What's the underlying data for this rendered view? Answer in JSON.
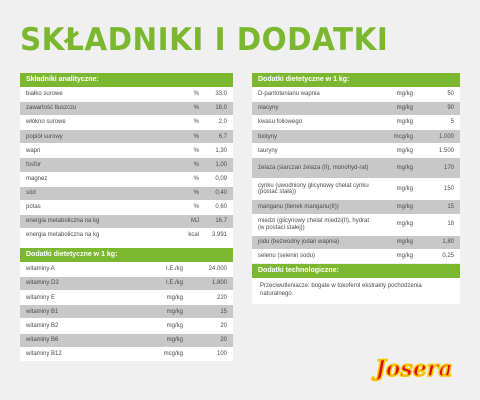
{
  "title": "SKŁADNIKI I DODATKI",
  "left": {
    "analytic": {
      "heading": "Składniki analityczne:",
      "rows": [
        {
          "name": "białko surowe",
          "unit": "%",
          "value": "33,0"
        },
        {
          "name": "zawartość tłuszczu",
          "unit": "%",
          "value": "18,0"
        },
        {
          "name": "włókno surowe",
          "unit": "%",
          "value": "2,0"
        },
        {
          "name": "popiół surowy",
          "unit": "%",
          "value": "6,7"
        },
        {
          "name": "wapń",
          "unit": "%",
          "value": "1,30"
        },
        {
          "name": "fosfor",
          "unit": "%",
          "value": "1,00"
        },
        {
          "name": "magnez",
          "unit": "%",
          "value": "0,09"
        },
        {
          "name": "sód",
          "unit": "%",
          "value": "0,40"
        },
        {
          "name": "potas",
          "unit": "%",
          "value": "0,60"
        },
        {
          "name": "energia metaboliczna na kg",
          "unit": "MJ",
          "value": "16,7"
        },
        {
          "name": "energia metaboliczna na kg",
          "unit": "kcal",
          "value": "3.991"
        }
      ]
    },
    "dietary": {
      "heading": "Dodatki dietetyczne w 1 kg:",
      "rows": [
        {
          "name": "witaminy A",
          "unit": "I.E./kg",
          "value": "24.000"
        },
        {
          "name": "witaminy D3",
          "unit": "I.E./kg",
          "value": "1.800"
        },
        {
          "name": "witaminy E",
          "unit": "mg/kg",
          "value": "220"
        },
        {
          "name": "witaminy B1",
          "unit": "mg/kg",
          "value": "15"
        },
        {
          "name": "witaminy B2",
          "unit": "mg/kg",
          "value": "20"
        },
        {
          "name": "witaminy B6",
          "unit": "mg/kg",
          "value": "20"
        },
        {
          "name": "witaminy B12",
          "unit": "mcg/kg",
          "value": "100"
        }
      ]
    }
  },
  "right": {
    "dietary": {
      "heading": "Dodatki dietetyczne w 1 kg:",
      "rows": [
        {
          "name": "D-pantotenianu wapnia",
          "unit": "mg/kg",
          "value": "50",
          "tall": false
        },
        {
          "name": "niacyny",
          "unit": "mg/kg",
          "value": "90",
          "tall": false
        },
        {
          "name": "kwasu foliowego",
          "unit": "mg/kg",
          "value": "5",
          "tall": false
        },
        {
          "name": "biotyny",
          "unit": "mcg/kg",
          "value": "1.000",
          "tall": false
        },
        {
          "name": "tauryny",
          "unit": "mg/kg",
          "value": "1.500",
          "tall": false
        },
        {
          "name": "żelaza (siarczan żelaza (II), monohyd-rat)",
          "unit": "mg/kg",
          "value": "170",
          "tall": true
        },
        {
          "name": "cynku (uwodniony glicynowy chelat cynku (postać stała))",
          "unit": "mg/kg",
          "value": "150",
          "tall": true
        },
        {
          "name": "manganu (tlenek manganu(II))",
          "unit": "mg/kg",
          "value": "15",
          "tall": false
        },
        {
          "name": "miedzi (glicynowy chelat miedzi(II), hydrat (w postaci stałej))",
          "unit": "mg/kg",
          "value": "18",
          "tall": true
        },
        {
          "name": "jodu (bezwodny jodan wapnia)",
          "unit": "mg/kg",
          "value": "1,80",
          "tall": false
        },
        {
          "name": "selenu (selenin sodu)",
          "unit": "mg/kg",
          "value": "0,25",
          "tall": false
        }
      ]
    },
    "technological": {
      "heading": "Dodatki technologiczne:",
      "text": "Przeciwutleniacze: bogate w tokoferol ekstrakty pochodzenia naturalnego."
    }
  },
  "logo": {
    "text": "Josera",
    "color": "#e30613",
    "outline": "#f7c600"
  },
  "colors": {
    "accent": "#7cb82f",
    "stripe": "#c8c8c8",
    "background": "#f0f0f0"
  }
}
